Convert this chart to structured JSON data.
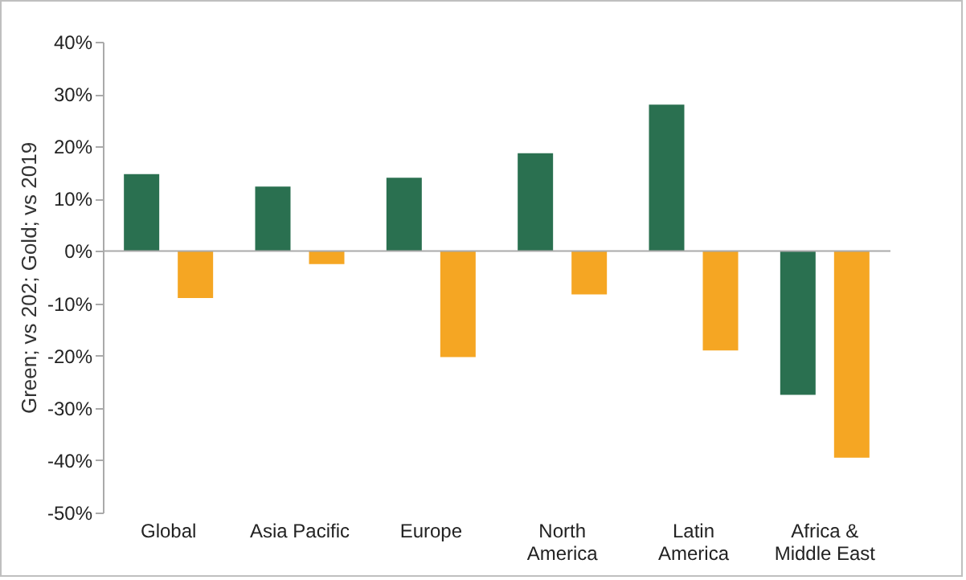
{
  "chart_data": {
    "type": "bar",
    "ylabel": "Green; vs 202; Gold; vs 2019",
    "categories": [
      "Global",
      "Asia Pacific",
      "Europe",
      "North\nAmerica",
      "Latin\nAmerica",
      "Africa &\nMiddle East"
    ],
    "series": [
      {
        "color": "#2a7050",
        "values": [
          14.7,
          12.3,
          14,
          18.7,
          28,
          -27.5
        ]
      },
      {
        "color": "#f5a623",
        "values": [
          -9,
          -2.5,
          -20.3,
          -8.3,
          -19,
          -39.5
        ]
      }
    ],
    "ylim": [
      -50,
      40
    ],
    "yticks": [
      {
        "value": -50,
        "label": "-50%"
      },
      {
        "value": -40,
        "label": "-40%"
      },
      {
        "value": -30,
        "label": "-30%"
      },
      {
        "value": -20,
        "label": "-20%"
      },
      {
        "value": -10,
        "label": "-10%"
      },
      {
        "value": 0,
        "label": "0%"
      },
      {
        "value": 10,
        "label": "10%"
      },
      {
        "value": 20,
        "label": "20%"
      },
      {
        "value": 30,
        "label": "30%"
      },
      {
        "value": 40,
        "label": "40%"
      }
    ],
    "legend": false
  }
}
